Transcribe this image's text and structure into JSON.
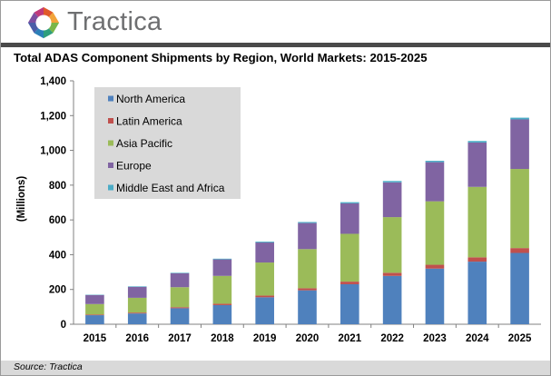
{
  "brand": {
    "name": "Tractica"
  },
  "chart_data": {
    "type": "bar",
    "stacked": true,
    "title": "Total ADAS Component Shipments by Region, World Markets: 2015-2025",
    "xlabel": "",
    "ylabel": "(Millions)",
    "ylim": [
      0,
      1400
    ],
    "yticks": [
      0,
      200,
      400,
      600,
      800,
      1000,
      1200,
      1400
    ],
    "ytick_labels": [
      "0",
      "200",
      "400",
      "600",
      "800",
      "1,000",
      "1,200",
      "1,400"
    ],
    "grid": false,
    "legend_position": "top-left",
    "categories": [
      "2015",
      "2016",
      "2017",
      "2018",
      "2019",
      "2020",
      "2021",
      "2022",
      "2023",
      "2024",
      "2025"
    ],
    "series": [
      {
        "name": "North America",
        "color": "#4f81bd",
        "values": [
          52,
          62,
          92,
          110,
          155,
          195,
          230,
          278,
          320,
          360,
          410
        ]
      },
      {
        "name": "Latin America",
        "color": "#c0504d",
        "values": [
          4,
          5,
          6,
          8,
          10,
          12,
          15,
          18,
          22,
          25,
          28
        ]
      },
      {
        "name": "Asia Pacific",
        "color": "#9bbb59",
        "values": [
          60,
          85,
          115,
          160,
          190,
          225,
          275,
          320,
          365,
          405,
          455
        ]
      },
      {
        "name": "Europe",
        "color": "#8064a2",
        "values": [
          52,
          63,
          80,
          95,
          115,
          150,
          175,
          200,
          225,
          255,
          285
        ]
      },
      {
        "name": "Middle East and Africa",
        "color": "#4bacc6",
        "values": [
          2,
          3,
          3,
          4,
          5,
          6,
          7,
          8,
          8,
          9,
          10
        ]
      }
    ]
  },
  "footer": {
    "source": "Source: Tractica"
  }
}
